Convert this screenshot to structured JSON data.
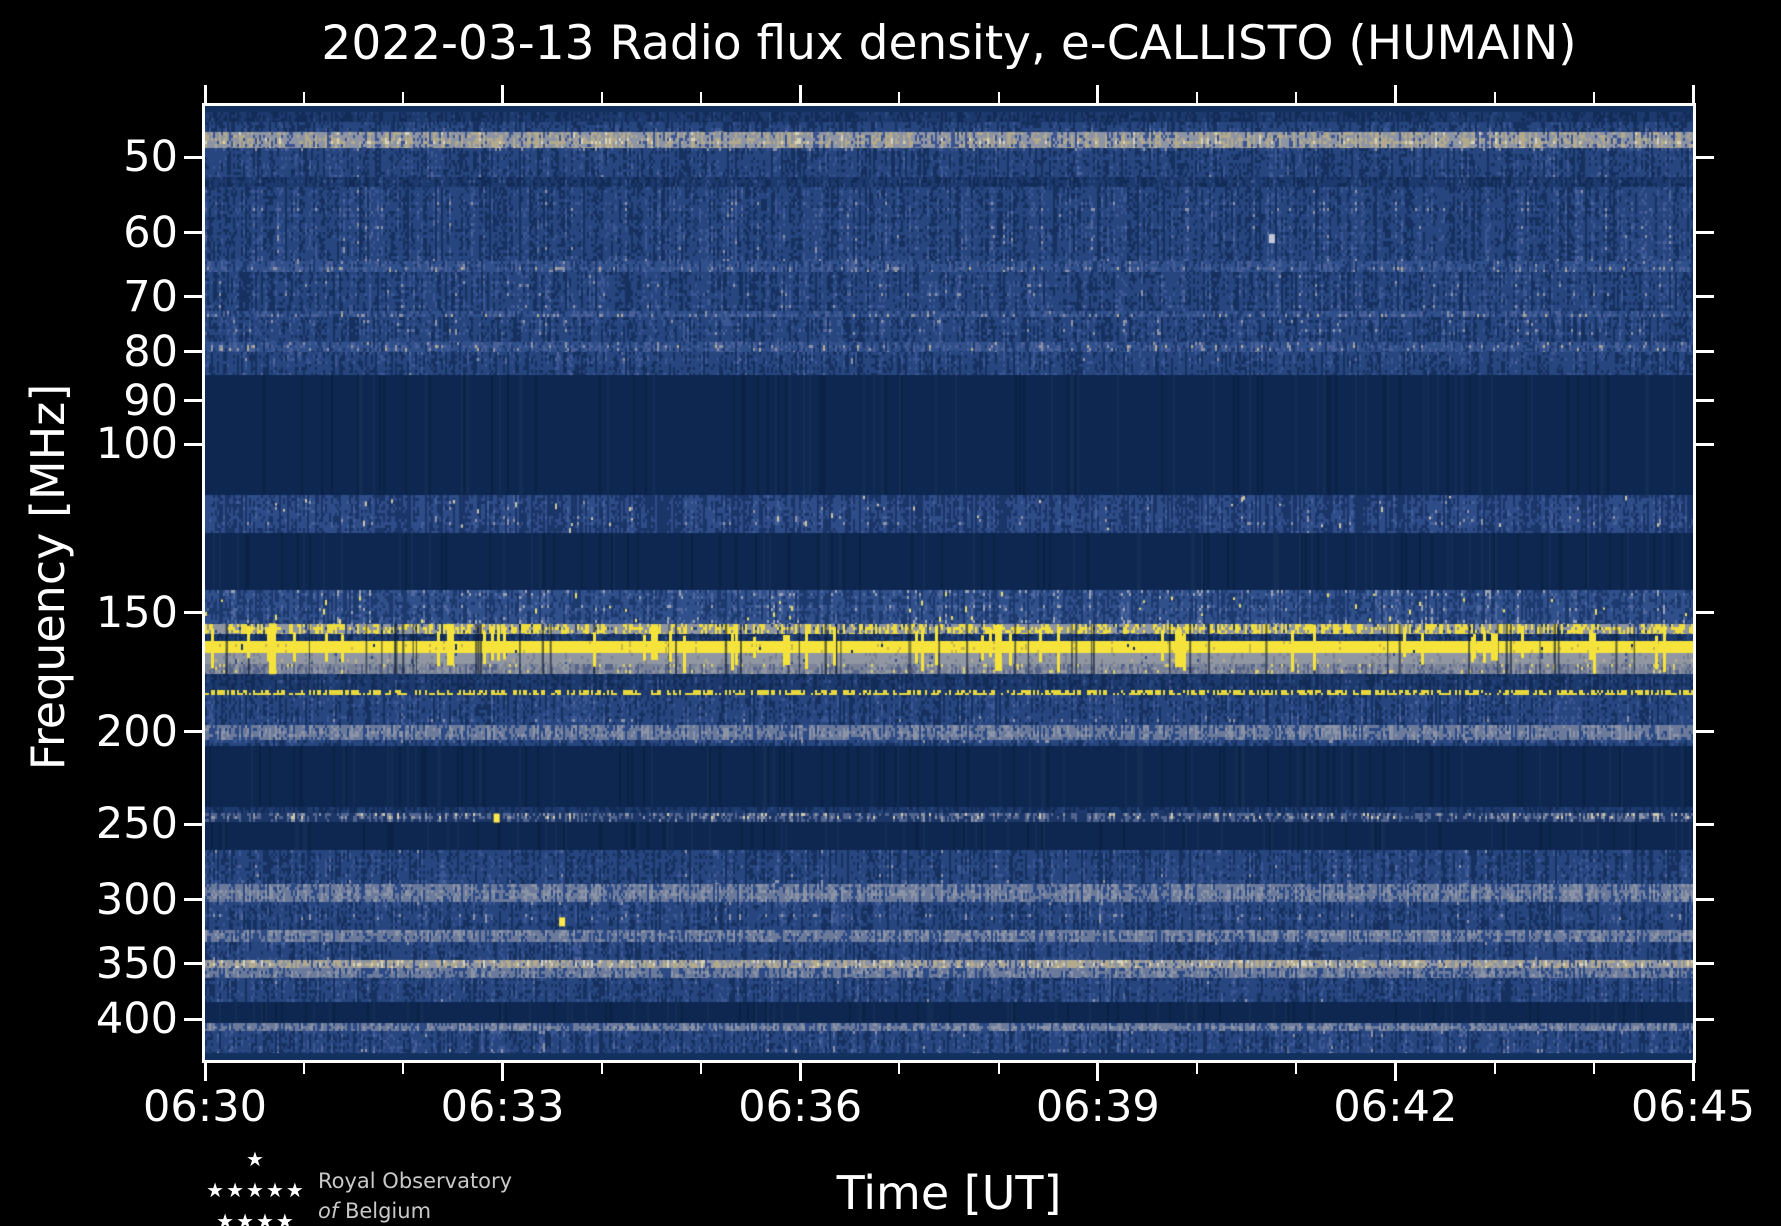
{
  "title": "2022-03-13 Radio flux density, e-CALLISTO (HUMAIN)",
  "xlabel": "Time [UT]",
  "ylabel": "Frequency [MHz]",
  "logo": {
    "line1": "Royal Observatory",
    "line2_italic": "of",
    "line2_rest": "Belgium",
    "star_rows": [
      "★",
      "★★★★★",
      "★★★★"
    ]
  },
  "colors": {
    "background": "#000000",
    "foreground": "#ffffff"
  },
  "chart_data": {
    "type": "heatmap",
    "title": "2022-03-13 Radio flux density, e-CALLISTO (HUMAIN)",
    "xlabel": "Time [UT]",
    "ylabel": "Frequency [MHz]",
    "x_ticks_major": [
      "06:30",
      "06:33",
      "06:36",
      "06:39",
      "06:42",
      "06:45"
    ],
    "x_range_minutes": 15,
    "x_minor_every_minutes": 1,
    "y_ticks": [
      50,
      60,
      70,
      80,
      90,
      100,
      150,
      200,
      250,
      300,
      350,
      400
    ],
    "y_scale": "log",
    "freq_range_mhz": [
      44.2,
      441.5
    ],
    "legend": "none",
    "grid": false,
    "bands": [
      [
        44.2,
        44.8,
        "edge"
      ],
      [
        44.8,
        45.9,
        "noise_dark"
      ],
      [
        45.9,
        47.1,
        "noise"
      ],
      [
        47.1,
        48.9,
        "tan_line"
      ],
      [
        48.9,
        52.5,
        "noise"
      ],
      [
        52.5,
        53.8,
        "noise_dark"
      ],
      [
        53.8,
        64.3,
        "noise"
      ],
      [
        64.3,
        65.9,
        "noise_lite"
      ],
      [
        65.9,
        72.4,
        "noise"
      ],
      [
        72.4,
        73.5,
        "noise_lite"
      ],
      [
        73.5,
        78.1,
        "noise"
      ],
      [
        78.1,
        80.0,
        "noise_lite"
      ],
      [
        80.0,
        84.6,
        "noise"
      ],
      [
        84.6,
        113.0,
        "quiet"
      ],
      [
        113.0,
        123.8,
        "speckle"
      ],
      [
        123.8,
        142.1,
        "quiet"
      ],
      [
        142.1,
        154.2,
        "speckle_yellow"
      ],
      [
        154.2,
        158.0,
        "yellow_dash"
      ],
      [
        158.0,
        160.7,
        "noise_dark"
      ],
      [
        160.7,
        165.4,
        "yellow_solid"
      ],
      [
        165.4,
        169.9,
        "gray_band"
      ],
      [
        169.9,
        174.0,
        "gray_mix"
      ],
      [
        174.0,
        180.9,
        "noise_dark"
      ],
      [
        180.9,
        183.1,
        "yellow_hair"
      ],
      [
        183.1,
        196.7,
        "noise"
      ],
      [
        196.7,
        204.0,
        "gray_stripe"
      ],
      [
        204.0,
        207.0,
        "noise"
      ],
      [
        207.0,
        239.8,
        "quiet"
      ],
      [
        239.8,
        243.3,
        "noise_dark"
      ],
      [
        243.3,
        248.6,
        "tan_sparse"
      ],
      [
        248.6,
        266.1,
        "quiet"
      ],
      [
        266.1,
        288.8,
        "noise"
      ],
      [
        288.8,
        301.5,
        "gray_stripe"
      ],
      [
        301.5,
        322.6,
        "noise"
      ],
      [
        322.6,
        332.1,
        "gray_stripe"
      ],
      [
        332.1,
        346.9,
        "noise"
      ],
      [
        346.9,
        353.6,
        "tan_line"
      ],
      [
        353.6,
        362.2,
        "gray_stripe"
      ],
      [
        362.2,
        384.0,
        "noise"
      ],
      [
        384.0,
        403.9,
        "quiet"
      ],
      [
        403.9,
        411.7,
        "gray_stripe"
      ],
      [
        411.7,
        434.1,
        "noise"
      ],
      [
        434.1,
        441.5,
        "edge"
      ]
    ],
    "styles": {
      "edge": {
        "kind": "solid",
        "color": "#13315f"
      },
      "quiet": {
        "kind": "solid",
        "color": "#0d2750",
        "variation": true
      },
      "noise": {
        "kind": "noise",
        "stops": [
          [
            0.35,
            "#16315f"
          ],
          [
            0.75,
            "#27457f"
          ],
          [
            0.92,
            "#3a5794"
          ],
          [
            0.985,
            "#53689c"
          ],
          [
            1,
            "#8c93a6"
          ]
        ]
      },
      "noise_dark": {
        "kind": "noise",
        "stops": [
          [
            0.4,
            "#122c58"
          ],
          [
            0.8,
            "#1d3a6e"
          ],
          [
            0.97,
            "#2a4880"
          ],
          [
            1,
            "#3d5590"
          ]
        ]
      },
      "noise_lite": {
        "kind": "noise",
        "stops": [
          [
            0.3,
            "#1d3a6e"
          ],
          [
            0.65,
            "#30508c"
          ],
          [
            0.88,
            "#4a6099"
          ],
          [
            0.985,
            "#8c93a6"
          ],
          [
            1,
            "#b3ab91"
          ]
        ]
      },
      "tan_line": {
        "kind": "noise",
        "stops": [
          [
            0.25,
            "#3c5590"
          ],
          [
            0.55,
            "#8d94a4"
          ],
          [
            0.85,
            "#b3aa8e"
          ],
          [
            1,
            "#d8d2b8"
          ]
        ]
      },
      "tan_sparse": {
        "kind": "noise",
        "stops": [
          [
            0.5,
            "#1c3667"
          ],
          [
            0.75,
            "#51648f"
          ],
          [
            0.9,
            "#8d94a4"
          ],
          [
            1,
            "#cfc9ae"
          ]
        ]
      },
      "speckle": {
        "kind": "noise",
        "stops": [
          [
            0.45,
            "#1a3568"
          ],
          [
            0.85,
            "#2e4c88"
          ],
          [
            0.96,
            "#44609a"
          ],
          [
            1,
            "#8c93a6"
          ]
        ],
        "fleck": {
          "p": 0.045,
          "color": "#c9c2a6",
          "w": 5
        }
      },
      "speckle_yellow": {
        "kind": "noise",
        "stops": [
          [
            0.4,
            "#1d3a6e"
          ],
          [
            0.75,
            "#30508c"
          ],
          [
            0.9,
            "#50689e"
          ],
          [
            1,
            "#9aa2b2"
          ]
        ],
        "fleck": {
          "p": 0.05,
          "color": "#e8dc6a",
          "w": 3
        }
      },
      "yellow_dash": {
        "kind": "noise",
        "stops": [
          [
            0.2,
            "#2c4a85"
          ],
          [
            0.5,
            "#8e94a0"
          ],
          [
            1,
            "#efdc3e"
          ]
        ]
      },
      "yellow_solid": {
        "kind": "noise",
        "stops": [
          [
            0.04,
            "#1a3568"
          ],
          [
            0.12,
            "#c9b94a"
          ],
          [
            1,
            "#f6e33c"
          ]
        ],
        "spike": {
          "p": 0.06,
          "up": 14,
          "down": 18,
          "color": "#f5e33c"
        }
      },
      "gray_band": {
        "kind": "noise",
        "stops": [
          [
            0.06,
            "#34508a"
          ],
          [
            0.2,
            "#7a8190"
          ],
          [
            0.9,
            "#9097a2"
          ],
          [
            1,
            "#b9b089"
          ]
        ]
      },
      "gray_mix": {
        "kind": "noise",
        "stops": [
          [
            0.3,
            "#56648a"
          ],
          [
            0.6,
            "#7a8298"
          ],
          [
            0.85,
            "#9097a2"
          ],
          [
            1,
            "#d8ce6a"
          ]
        ]
      },
      "gray_stripe": {
        "kind": "noise",
        "stops": [
          [
            0.35,
            "#2c4a85"
          ],
          [
            0.7,
            "#6b7a9b"
          ],
          [
            1,
            "#8b93a6"
          ]
        ]
      },
      "yellow_hair": {
        "kind": "noise",
        "stops": [
          [
            0.45,
            "#1e3a70"
          ],
          [
            1,
            "#e8d83a"
          ]
        ]
      }
    },
    "extras": {
      "hairlines": {
        "count": 55,
        "f_lo": 154.2,
        "f_hi": 174.0,
        "color": "rgba(9,23,48,0.6)"
      },
      "hot_spots": [
        {
          "x": 0.196,
          "f": 246,
          "color": "#ffe84a"
        },
        {
          "x": 0.24,
          "f": 316,
          "color": "#ffe84a"
        },
        {
          "x": 0.717,
          "f": 60.8,
          "color": "#c4c9d6"
        }
      ],
      "seed": 20220313
    }
  }
}
